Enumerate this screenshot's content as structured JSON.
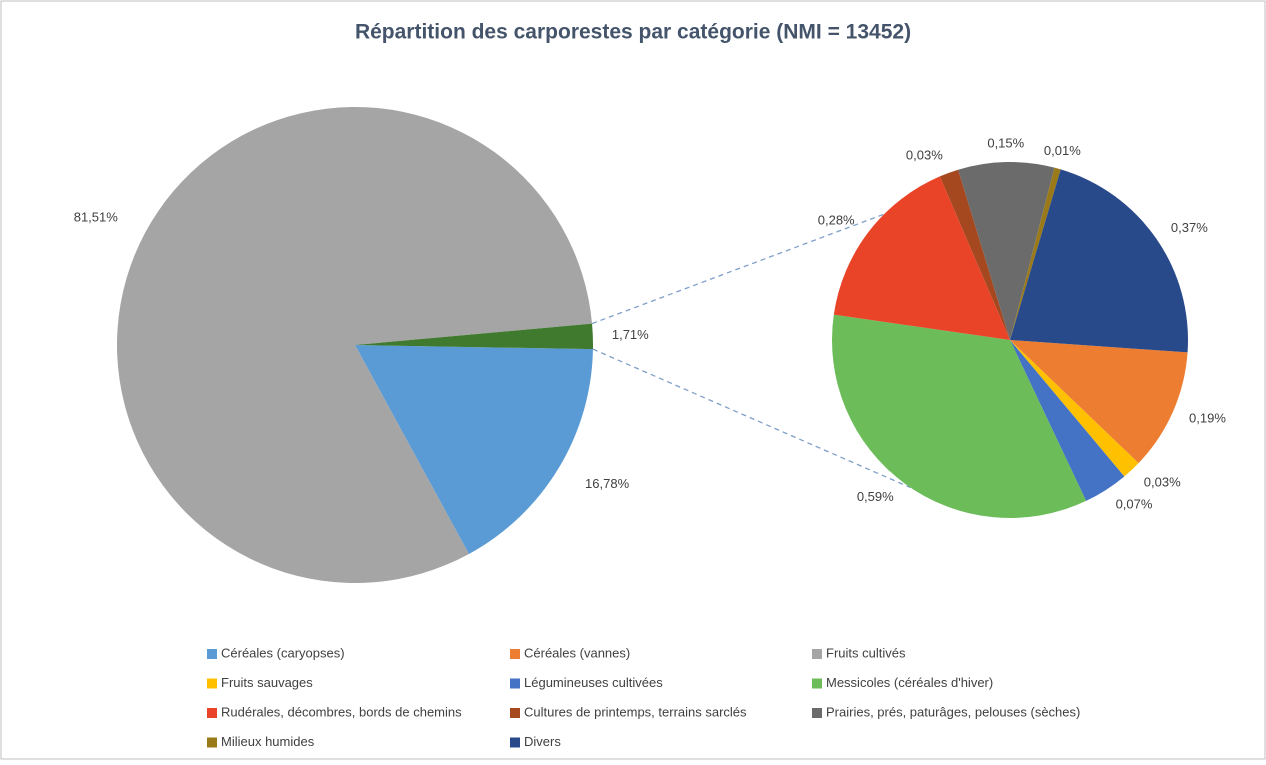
{
  "chart_data": {
    "type": "pie-of-pie",
    "title": "Répartition des carporestes par catégorie (NMI = 13452)",
    "categories": [
      "Céréales (caryopses)",
      "Céréales (vannes)",
      "Fruits cultivés",
      "Fruits sauvages",
      "Légumineuses cultivées",
      "Messicoles (céréales d'hiver)",
      "Rudérales, décombres, bords de chemins",
      "Cultures de printemps, terrains sarclés",
      "Prairies, prés, paturâges, pelouses (sèches)",
      "Milieux humides",
      "Divers"
    ],
    "values": [
      16.78,
      0.19,
      81.51,
      0.03,
      0.07,
      0.59,
      0.28,
      0.03,
      0.15,
      0.01,
      0.37
    ],
    "value_labels": [
      "16,78%",
      "0,19%",
      "81,51%",
      "0,03%",
      "0,07%",
      "0,59%",
      "0,28%",
      "0,03%",
      "0,15%",
      "0,01%",
      "0,37%"
    ],
    "colors": [
      "#5b9bd5",
      "#ed7d31",
      "#a5a5a5",
      "#ffc000",
      "#4472c4",
      "#6cbd5a",
      "#ea4428",
      "#a5481f",
      "#6b6b6b",
      "#9a7a18",
      "#294a8a"
    ],
    "pies": [
      "primary",
      "secondary",
      "primary",
      "secondary",
      "secondary",
      "secondary",
      "secondary",
      "secondary",
      "secondary",
      "secondary",
      "secondary"
    ],
    "other_value": 1.71,
    "other_value_label": "1,71%",
    "other_color": "#3f7a2e"
  }
}
